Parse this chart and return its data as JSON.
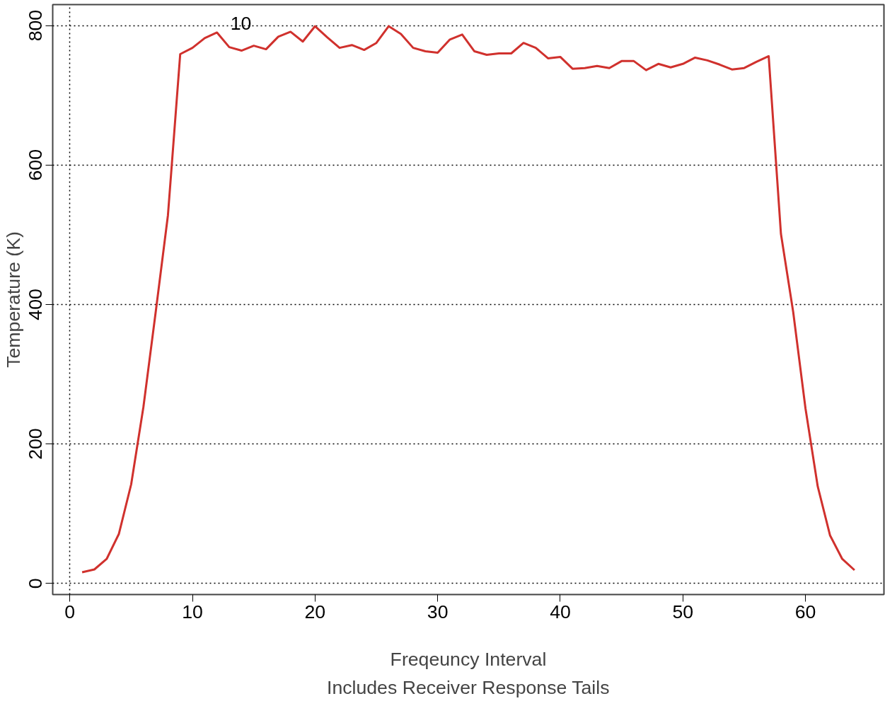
{
  "chart_data": {
    "type": "line",
    "xlabel": "Freqeuncy Interval",
    "ylabel": "Temperature (K)",
    "x": [
      1,
      2,
      3,
      4,
      5,
      6,
      7,
      8,
      9,
      10,
      11,
      12,
      13,
      14,
      15,
      16,
      17,
      18,
      19,
      20,
      21,
      22,
      23,
      24,
      25,
      26,
      27,
      28,
      29,
      30,
      31,
      32,
      33,
      34,
      35,
      36,
      37,
      38,
      39,
      40,
      41,
      42,
      43,
      44,
      45,
      46,
      47,
      48,
      49,
      50,
      51,
      52,
      53,
      54,
      55,
      56,
      57,
      58,
      59,
      60,
      61,
      62,
      63,
      64
    ],
    "series": [
      {
        "color": "#d0312d",
        "values": [
          16,
          20,
          35,
          71,
          142,
          253,
          389,
          528,
          759,
          768,
          782,
          790,
          769,
          764,
          771,
          766,
          784,
          791,
          777,
          799,
          783,
          768,
          772,
          765,
          775,
          799,
          788,
          768,
          763,
          761,
          780,
          787,
          763,
          758,
          760,
          760,
          775,
          768,
          753,
          755,
          738,
          739,
          742,
          739,
          749,
          749,
          736,
          745,
          740,
          745,
          754,
          750,
          744,
          737,
          739,
          748,
          756,
          501,
          389,
          251,
          139,
          69,
          35,
          19
        ]
      }
    ],
    "annotations": [
      "10",
      "Includes Receiver Response Tails"
    ],
    "xlim": [
      -1.4,
      66.4
    ],
    "ylim": [
      -16,
      830
    ],
    "xticks": [
      0,
      10,
      20,
      30,
      40,
      50,
      60
    ],
    "yticks": [
      0,
      200,
      400,
      600,
      800
    ],
    "grid": true,
    "line_style": "solid",
    "marker": "none"
  }
}
